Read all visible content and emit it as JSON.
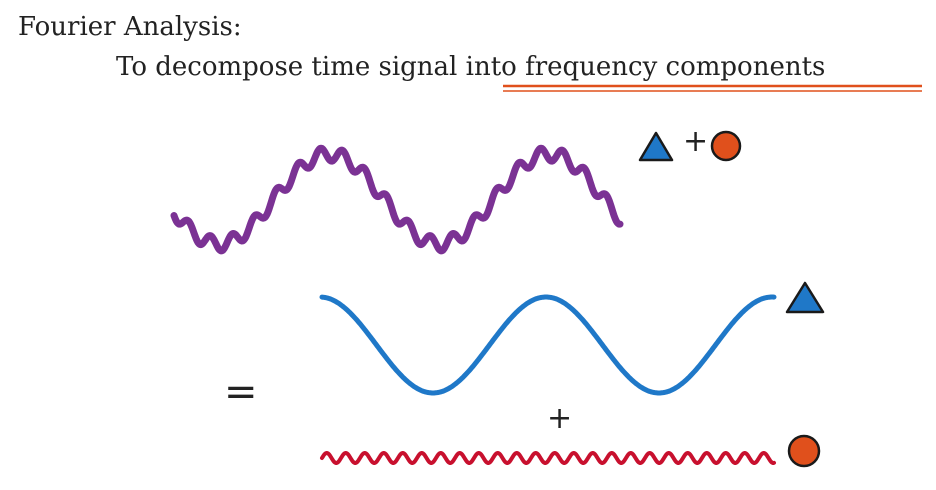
{
  "slide": {
    "title": "Fourier Analysis:",
    "subtitle_prefix": "To decompose time signal ",
    "subtitle_emphasis": "into frequency components"
  },
  "operators": {
    "plus": "+",
    "equals": "="
  },
  "colors": {
    "composite_wave": "#7b3294",
    "low_freq_wave": "#1f78c8",
    "high_freq_wave": "#c8102e",
    "triangle_fill": "#1f78c8",
    "circle_fill": "#e0501c",
    "underline": "#e0501c",
    "outline": "#1a1a1a"
  },
  "icons": {
    "low_frequency": "blue-triangle-icon",
    "high_frequency": "orange-circle-icon"
  }
}
